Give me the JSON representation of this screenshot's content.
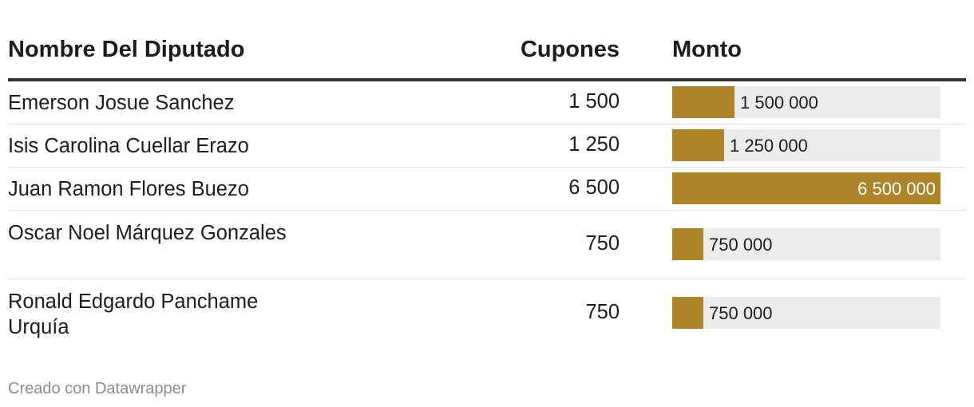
{
  "header": {
    "name": "Nombre Del Diputado",
    "cupones": "Cupones",
    "monto": "Monto"
  },
  "chart_data": {
    "type": "table",
    "columns": [
      "Nombre Del Diputado",
      "Cupones",
      "Monto"
    ],
    "max_monto": 6500000,
    "rows": [
      {
        "name": "Emerson Josue Sanchez",
        "cupones": "1 500",
        "monto": 1500000,
        "monto_label": "1 500 000"
      },
      {
        "name": "Isis Carolina Cuellar Erazo",
        "cupones": "1 250",
        "monto": 1250000,
        "monto_label": "1 250 000"
      },
      {
        "name": "Juan Ramon Flores Buezo",
        "cupones": "6 500",
        "monto": 6500000,
        "monto_label": "6 500 000"
      },
      {
        "name": "Oscar Noel Márquez Gonzales",
        "cupones": "750",
        "monto": 750000,
        "monto_label": "750 000"
      },
      {
        "name": "Ronald Edgardo Panchame Urquía",
        "cupones": "750",
        "monto": 750000,
        "monto_label": "750 000"
      }
    ],
    "bar_color": "#ae8428",
    "track_color": "#ececec"
  },
  "footer": "Creado con Datawrapper"
}
